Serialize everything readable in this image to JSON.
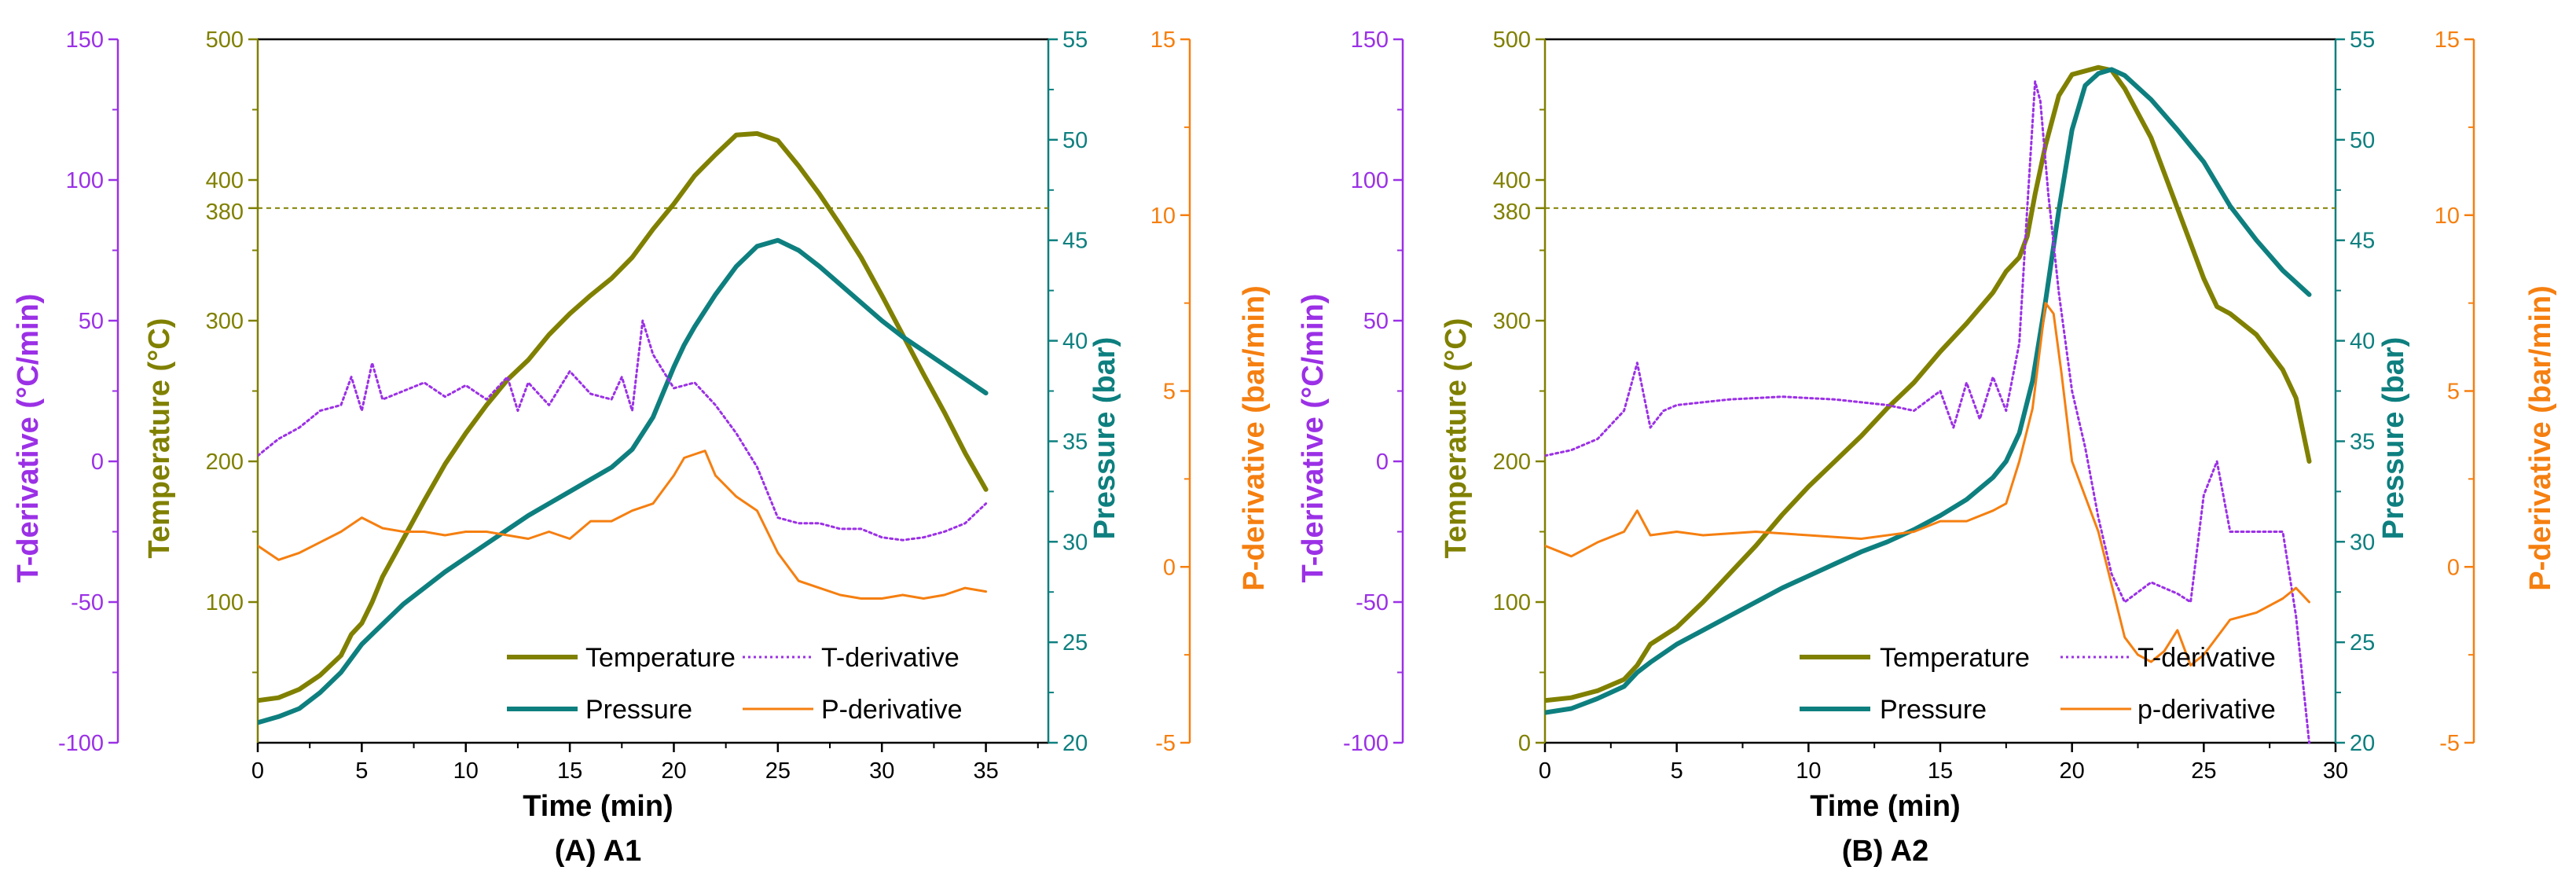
{
  "colors": {
    "temperature": "#808000",
    "pressure": "#0e7f7f",
    "t_derivative": "#9b30e6",
    "p_derivative": "#f57f10",
    "threshold": "#808000"
  },
  "chart_data": [
    {
      "type": "line",
      "panel_title": "(A) A1",
      "xlabel": "Time (min)",
      "xlim": [
        0,
        38
      ],
      "x_ticks": [
        "0",
        "5",
        "10",
        "15",
        "20",
        "25",
        "30",
        "35"
      ],
      "axes": {
        "temperature": {
          "label": "Temperature (°C)",
          "ylim": [
            0,
            500
          ],
          "ticks": [
            "100",
            "200",
            "300",
            "400",
            "500"
          ],
          "extra_tick": "380"
        },
        "pressure": {
          "label": "Pressure (bar)",
          "ylim": [
            20,
            55
          ],
          "ticks": [
            "20",
            "25",
            "30",
            "35",
            "40",
            "45",
            "50",
            "55"
          ]
        },
        "t_derivative": {
          "label": "T-derivative (°C/min)",
          "ylim": [
            -100,
            150
          ],
          "ticks": [
            "-100",
            "-50",
            "0",
            "50",
            "100",
            "150"
          ]
        },
        "p_derivative": {
          "label": "P-derivative (bar/min)",
          "ylim": [
            -5,
            15
          ],
          "ticks": [
            "-5",
            "0",
            "5",
            "10",
            "15"
          ]
        }
      },
      "threshold": {
        "axis": "temperature",
        "value": 380
      },
      "legend": [
        "Temperature",
        "T-derivative",
        "Pressure",
        "P-derivative"
      ],
      "series": [
        {
          "name": "Temperature",
          "axis": "temperature",
          "style": "solid",
          "x": [
            0,
            1,
            2,
            3,
            4,
            4.5,
            5,
            5.5,
            6,
            7,
            8,
            9,
            10,
            11,
            12,
            13,
            14,
            15,
            16,
            17,
            18,
            19,
            20,
            21,
            22,
            23,
            24,
            25,
            26,
            27,
            28,
            29,
            30,
            31,
            32,
            33,
            34,
            35
          ],
          "y": [
            30,
            32,
            38,
            48,
            62,
            77,
            85,
            100,
            118,
            145,
            172,
            198,
            220,
            240,
            258,
            272,
            290,
            305,
            318,
            330,
            345,
            365,
            383,
            403,
            418,
            432,
            433,
            428,
            410,
            390,
            368,
            345,
            318,
            290,
            262,
            235,
            206,
            180
          ]
        },
        {
          "name": "Pressure",
          "axis": "pressure",
          "style": "solid",
          "x": [
            0,
            1,
            2,
            3,
            4,
            5,
            6,
            7,
            8,
            9,
            10,
            11,
            12,
            13,
            14,
            15,
            16,
            17,
            18,
            19,
            20,
            20.5,
            21,
            22,
            23,
            24,
            25,
            26,
            27,
            28,
            29,
            30,
            31,
            32,
            33,
            34,
            35
          ],
          "y": [
            21.0,
            21.3,
            21.7,
            22.5,
            23.5,
            24.9,
            25.9,
            26.9,
            27.7,
            28.5,
            29.2,
            29.9,
            30.6,
            31.3,
            31.9,
            32.5,
            33.1,
            33.7,
            34.6,
            36.2,
            38.7,
            39.8,
            40.7,
            42.3,
            43.7,
            44.7,
            45.0,
            44.5,
            43.7,
            42.8,
            41.9,
            41.0,
            40.2,
            39.5,
            38.8,
            38.1,
            37.4
          ]
        },
        {
          "name": "T-derivative",
          "axis": "t_derivative",
          "style": "dotted",
          "x": [
            0,
            1,
            2,
            3,
            4,
            4.5,
            5,
            5.5,
            6,
            7,
            8,
            9,
            10,
            11,
            12,
            12.5,
            13,
            14,
            15,
            16,
            17,
            17.5,
            18,
            18.5,
            19,
            20,
            21,
            22,
            23,
            24,
            25,
            26,
            27,
            28,
            29,
            30,
            31,
            32,
            33,
            34,
            35
          ],
          "y": [
            2,
            8,
            12,
            18,
            20,
            30,
            18,
            35,
            22,
            25,
            28,
            23,
            27,
            22,
            30,
            18,
            28,
            20,
            32,
            24,
            22,
            30,
            18,
            50,
            38,
            26,
            28,
            20,
            10,
            -2,
            -20,
            -22,
            -22,
            -24,
            -24,
            -27,
            -28,
            -27,
            -25,
            -22,
            -15
          ]
        },
        {
          "name": "P-derivative",
          "axis": "p_derivative",
          "style": "solid",
          "x": [
            0,
            1,
            2,
            3,
            4,
            5,
            6,
            7,
            8,
            9,
            10,
            11,
            12,
            13,
            14,
            15,
            16,
            17,
            18,
            19,
            20,
            20.5,
            21,
            21.5,
            22,
            23,
            24,
            25,
            26,
            27,
            28,
            29,
            30,
            31,
            32,
            33,
            34,
            35
          ],
          "y": [
            0.6,
            0.2,
            0.4,
            0.7,
            1.0,
            1.4,
            1.1,
            1.0,
            1.0,
            0.9,
            1.0,
            1.0,
            0.9,
            0.8,
            1.0,
            0.8,
            1.3,
            1.3,
            1.6,
            1.8,
            2.6,
            3.1,
            3.2,
            3.3,
            2.6,
            2.0,
            1.6,
            0.4,
            -0.4,
            -0.6,
            -0.8,
            -0.9,
            -0.9,
            -0.8,
            -0.9,
            -0.8,
            -0.6,
            -0.7
          ]
        }
      ]
    },
    {
      "type": "line",
      "panel_title": "(B) A2",
      "xlabel": "Time (min)",
      "xlim": [
        0,
        30
      ],
      "x_ticks": [
        "0",
        "5",
        "10",
        "15",
        "20",
        "25",
        "30"
      ],
      "axes": {
        "temperature": {
          "label": "Temperature (°C)",
          "ylim": [
            0,
            500
          ],
          "ticks": [
            "0",
            "100",
            "200",
            "300",
            "400",
            "500"
          ],
          "extra_tick": "380"
        },
        "pressure": {
          "label": "Pressure (bar)",
          "ylim": [
            20,
            55
          ],
          "ticks": [
            "20",
            "25",
            "30",
            "35",
            "40",
            "45",
            "50",
            "55"
          ]
        },
        "t_derivative": {
          "label": "T-derivative (°C/min)",
          "ylim": [
            -100,
            150
          ],
          "ticks": [
            "-100",
            "-50",
            "0",
            "50",
            "100",
            "150"
          ]
        },
        "p_derivative": {
          "label": "P-derivative (bar/min)",
          "ylim": [
            -5,
            15
          ],
          "ticks": [
            "-5",
            "0",
            "5",
            "10",
            "15"
          ]
        }
      },
      "threshold": {
        "axis": "temperature",
        "value": 380
      },
      "legend": [
        "Temperature",
        "T-derivative",
        "Pressure",
        "p-derivative"
      ],
      "series": [
        {
          "name": "Temperature",
          "axis": "temperature",
          "style": "solid",
          "x": [
            0,
            1,
            2,
            3,
            3.5,
            4,
            5,
            6,
            7,
            8,
            9,
            10,
            11,
            12,
            13,
            14,
            15,
            16,
            17,
            17.5,
            18,
            18.3,
            18.6,
            19,
            19.5,
            20,
            21,
            21.5,
            22,
            23,
            24,
            25,
            25.5,
            26,
            27,
            28,
            28.5,
            29
          ],
          "y": [
            30,
            32,
            37,
            45,
            55,
            70,
            82,
            100,
            120,
            140,
            162,
            182,
            200,
            218,
            238,
            256,
            278,
            298,
            320,
            335,
            345,
            360,
            390,
            425,
            460,
            475,
            480,
            478,
            465,
            430,
            380,
            330,
            310,
            305,
            290,
            265,
            245,
            200
          ]
        },
        {
          "name": "Pressure",
          "axis": "pressure",
          "style": "solid",
          "x": [
            0,
            1,
            2,
            3,
            3.5,
            4,
            5,
            6,
            7,
            8,
            9,
            10,
            11,
            12,
            13,
            14,
            15,
            16,
            17,
            17.5,
            18,
            18.5,
            19,
            19.5,
            20,
            20.5,
            21,
            21.5,
            22,
            23,
            24,
            25,
            26,
            27,
            28,
            29
          ],
          "y": [
            21.5,
            21.7,
            22.2,
            22.8,
            23.5,
            24.0,
            24.9,
            25.6,
            26.3,
            27.0,
            27.7,
            28.3,
            28.9,
            29.5,
            30.0,
            30.6,
            31.3,
            32.1,
            33.2,
            34.0,
            35.4,
            38.0,
            42.0,
            46.5,
            50.5,
            52.7,
            53.3,
            53.5,
            53.2,
            52.0,
            50.5,
            48.9,
            46.7,
            45.0,
            43.5,
            42.3
          ]
        },
        {
          "name": "T-derivative",
          "axis": "t_derivative",
          "style": "dotted",
          "x": [
            0,
            1,
            2,
            3,
            3.5,
            4,
            4.5,
            5,
            7,
            9,
            11,
            13,
            14,
            15,
            15.5,
            16,
            16.5,
            17,
            17.5,
            18,
            18.3,
            18.6,
            18.8,
            19.1,
            19.5,
            20,
            20.5,
            21,
            21.5,
            22,
            23,
            24,
            24.5,
            25,
            25.5,
            26,
            27,
            28,
            28.5,
            29
          ],
          "y": [
            2,
            4,
            8,
            18,
            35,
            12,
            18,
            20,
            22,
            23,
            22,
            20,
            18,
            25,
            12,
            28,
            15,
            30,
            18,
            42,
            90,
            135,
            128,
            95,
            60,
            25,
            5,
            -20,
            -40,
            -50,
            -43,
            -47,
            -50,
            -12,
            0,
            -25,
            -25,
            -25,
            -55,
            -100
          ]
        },
        {
          "name": "p-derivative",
          "axis": "p_derivative",
          "style": "solid",
          "x": [
            0,
            1,
            2,
            3,
            3.5,
            4,
            5,
            6,
            8,
            10,
            12,
            14,
            15,
            16,
            17,
            17.5,
            18,
            18.5,
            19,
            19.3,
            19.6,
            20,
            21,
            21.5,
            22,
            22.5,
            23,
            23.5,
            24,
            24.5,
            25,
            26,
            27,
            28,
            28.5,
            29
          ],
          "y": [
            0.6,
            0.3,
            0.7,
            1.0,
            1.6,
            0.9,
            1.0,
            0.9,
            1.0,
            0.9,
            0.8,
            1.0,
            1.3,
            1.3,
            1.6,
            1.8,
            3.0,
            4.5,
            7.5,
            7.2,
            5.5,
            3.0,
            1.0,
            -0.5,
            -2.0,
            -2.5,
            -2.7,
            -2.4,
            -1.8,
            -2.8,
            -2.5,
            -1.5,
            -1.3,
            -0.9,
            -0.6,
            -1.0
          ]
        }
      ]
    }
  ]
}
